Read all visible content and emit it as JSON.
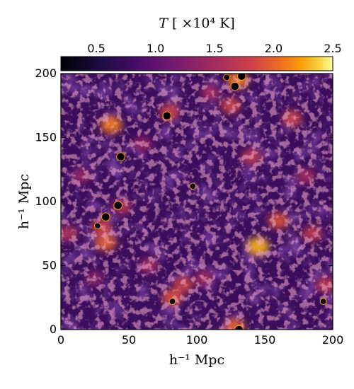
{
  "chart_data": {
    "type": "heatmap",
    "colorbar": {
      "label": "T  [ ×10⁴ K]",
      "label_var": "T",
      "label_units": "[ ×10⁴ K]",
      "ticks": [
        "0.5",
        "1.0",
        "1.5",
        "2.0",
        "2.5"
      ],
      "tick_values": [
        0.5,
        1.0,
        1.5,
        2.0,
        2.5
      ],
      "range": [
        0.2,
        2.5
      ],
      "colormap": "inferno",
      "position": "top"
    },
    "xlabel": "h⁻¹ Mpc",
    "ylabel": "h⁻¹ Mpc",
    "xlim": [
      0,
      200
    ],
    "ylim": [
      0,
      200
    ],
    "xticks": [
      "0",
      "50",
      "100",
      "150",
      "200"
    ],
    "yticks": [
      "0",
      "50",
      "100",
      "150",
      "200"
    ],
    "xtick_values": [
      0,
      50,
      100,
      150,
      200
    ],
    "ytick_values": [
      0,
      50,
      100,
      150,
      200
    ],
    "grid": false,
    "hot_spots_T": [
      {
        "x": 37,
        "y": 160,
        "T": 2.1
      },
      {
        "x": 33,
        "y": 68,
        "T": 2.0
      },
      {
        "x": 30,
        "y": 80,
        "T": 1.8
      },
      {
        "x": 45,
        "y": 96,
        "T": 1.6
      },
      {
        "x": 145,
        "y": 65,
        "T": 2.3
      },
      {
        "x": 160,
        "y": 85,
        "T": 1.9
      },
      {
        "x": 185,
        "y": 75,
        "T": 1.7
      },
      {
        "x": 128,
        "y": 2,
        "T": 2.0
      },
      {
        "x": 82,
        "y": 25,
        "T": 1.9
      },
      {
        "x": 90,
        "y": 35,
        "T": 1.8
      },
      {
        "x": 105,
        "y": 40,
        "T": 1.5
      },
      {
        "x": 125,
        "y": 175,
        "T": 1.8
      },
      {
        "x": 130,
        "y": 195,
        "T": 2.1
      },
      {
        "x": 80,
        "y": 170,
        "T": 1.8
      },
      {
        "x": 170,
        "y": 165,
        "T": 1.8
      },
      {
        "x": 140,
        "y": 135,
        "T": 1.7
      },
      {
        "x": 15,
        "y": 120,
        "T": 1.4
      },
      {
        "x": 5,
        "y": 75,
        "T": 1.6
      },
      {
        "x": 195,
        "y": 35,
        "T": 1.7
      },
      {
        "x": 60,
        "y": 145,
        "T": 1.4
      },
      {
        "x": 110,
        "y": 185,
        "T": 1.5
      },
      {
        "x": 180,
        "y": 120,
        "T": 1.5
      },
      {
        "x": 65,
        "y": 50,
        "T": 1.5
      },
      {
        "x": 25,
        "y": 40,
        "T": 1.3
      }
    ],
    "cold_spots_T": [
      {
        "x": 42,
        "y": 97,
        "T": 0.2
      },
      {
        "x": 33,
        "y": 88,
        "T": 0.2
      },
      {
        "x": 27,
        "y": 81,
        "T": 0.3
      },
      {
        "x": 44,
        "y": 135,
        "T": 0.2
      },
      {
        "x": 78,
        "y": 167,
        "T": 0.2
      },
      {
        "x": 128,
        "y": 190,
        "T": 0.2
      },
      {
        "x": 122,
        "y": 197,
        "T": 0.3
      },
      {
        "x": 133,
        "y": 198,
        "T": 0.2
      },
      {
        "x": 97,
        "y": 112,
        "T": 0.3
      },
      {
        "x": 82,
        "y": 22,
        "T": 0.3
      },
      {
        "x": 131,
        "y": 0,
        "T": 0.2
      },
      {
        "x": 193,
        "y": 22,
        "T": 0.3
      }
    ]
  }
}
